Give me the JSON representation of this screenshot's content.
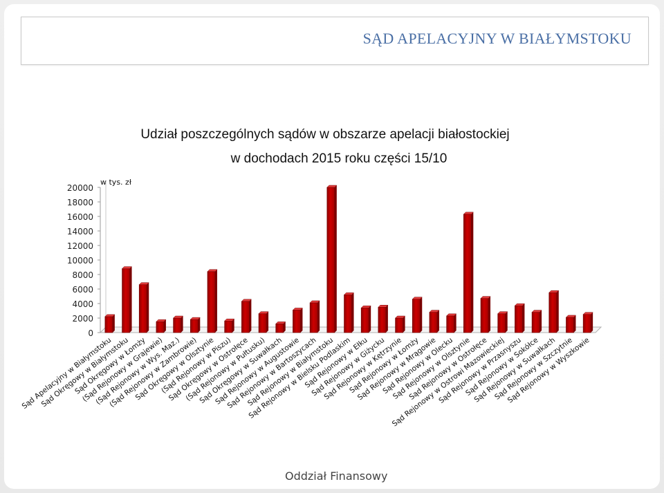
{
  "slide": {
    "header_title": "SĄD APELACYJNY W BIAŁYMSTOKU",
    "footer": "Oddział Finansowy"
  },
  "chart_data": {
    "type": "bar",
    "title": "Udział poszczególnych sądów w obszarze apelacji białostockiej",
    "subtitle": "w dochodach 2015 roku części 15/10",
    "unit_label": "w tys. zł",
    "ylim": [
      0,
      20000
    ],
    "yticks": [
      0,
      2000,
      4000,
      6000,
      8000,
      10000,
      12000,
      14000,
      16000,
      18000,
      20000
    ],
    "bar_color": "#cc0000",
    "categories": [
      "Sąd Apelacyjny w Białymstoku",
      "Sąd Okręgowy w Białymstoku",
      "Sąd Okręgowy w Łomży",
      "(Sąd Rejonowy w Grajewie)",
      "(Sąd Rejonowy w Wys. Maz.)",
      "(Sąd Rejonowy w Zambrowie)",
      "Sąd Okręgowy w Olsztynie",
      "(Sąd Rejonowy w Piszu)",
      "Sąd Okręgowy w Ostrołęce",
      "(Sąd Rejonowy w Pułtusku)",
      "Sąd Okręgowy w Suwałkach",
      "Sąd Rejonowy w Augustowie",
      "Sąd Rejonowy w Bartoszycach",
      "Sąd Rejonowy w Białymstoku",
      "Sąd Rejonowy w Bielsku Podlaskim",
      "Sąd Rejonowy w Ełku",
      "Sąd Rejonowy w Giżycku",
      "Sąd Rejonowy w Kętrzynie",
      "Sąd Rejonowy w Łomży",
      "Sąd Rejonowy w Mrągowie",
      "Sąd Rejonowy w Olecku",
      "Sąd Rejonowy w Olsztynie",
      "Sąd Rejonowy w Ostrołęce",
      "Sąd Rejonowy w Ostrowi Mazowieckiej",
      "Sąd Rejonowy w Przasnyszu",
      "Sąd Rejonowy w Sokółce",
      "Sąd Rejonowy w Suwałkach",
      "Sąd Rejonowy w Szczytnie",
      "Sąd Rejonowy w Wyszkowie"
    ],
    "values": [
      2200,
      8800,
      6600,
      1500,
      2000,
      1800,
      8400,
      1600,
      4300,
      2600,
      1200,
      3100,
      4100,
      20000,
      5200,
      3400,
      3500,
      2000,
      4600,
      2800,
      2300,
      16300,
      4700,
      2600,
      3700,
      2800,
      5500,
      2100,
      2500
    ],
    "grid": false,
    "legend": "none"
  }
}
